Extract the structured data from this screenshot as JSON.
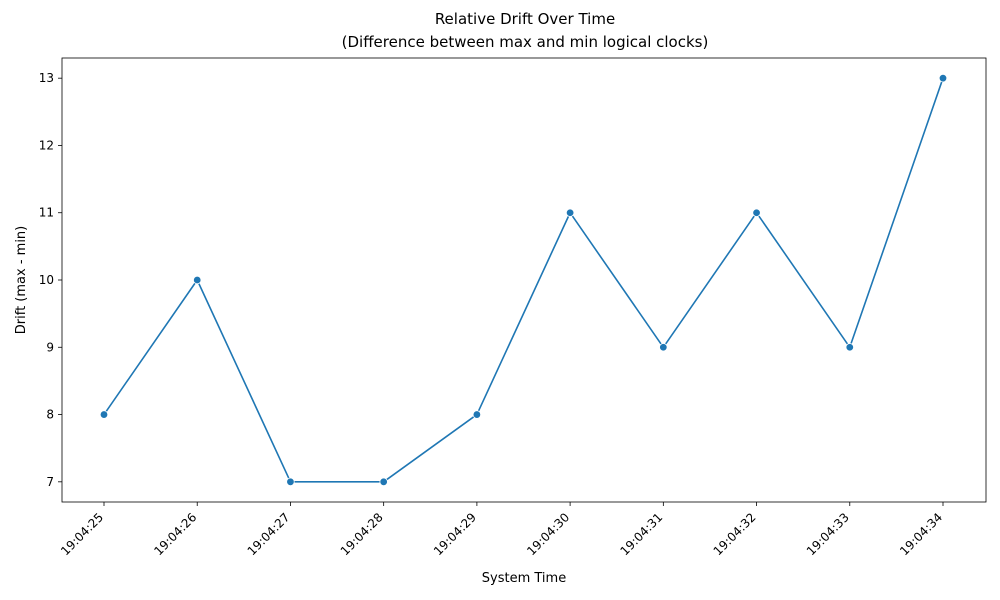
{
  "chart_data": {
    "type": "line",
    "title": "Relative Drift Over Time",
    "subtitle": "(Difference between max and min logical clocks)",
    "xlabel": "System Time",
    "ylabel": "Drift (max - min)",
    "categories": [
      "19:04:25",
      "19:04:26",
      "19:04:27",
      "19:04:28",
      "19:04:29",
      "19:04:30",
      "19:04:31",
      "19:04:32",
      "19:04:33",
      "19:04:34"
    ],
    "series": [
      {
        "values": [
          8,
          10,
          7,
          7,
          8,
          11,
          9,
          11,
          9,
          13
        ]
      }
    ],
    "yticks": [
      7,
      8,
      9,
      10,
      11,
      12,
      13
    ],
    "ylim": [
      6.7,
      13.3
    ],
    "grid": false,
    "legend": "none",
    "colors": {
      "line": "#1f77b4",
      "axis": "#000000"
    }
  }
}
